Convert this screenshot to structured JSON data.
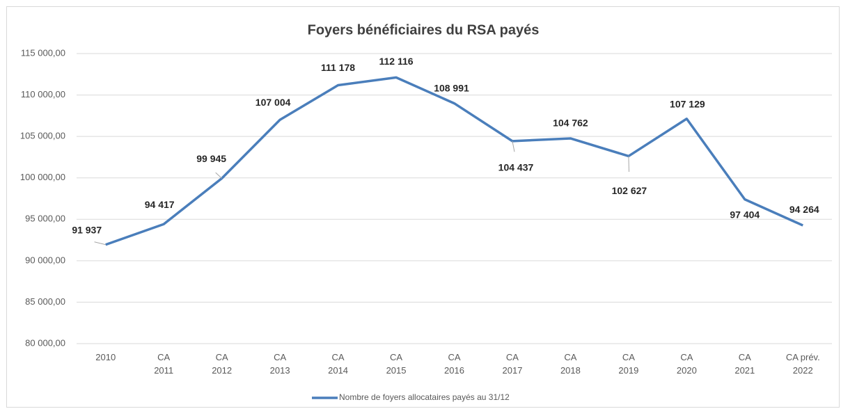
{
  "chart_data": {
    "type": "line",
    "title": "Foyers bénéficiaires du RSA payés",
    "categories": [
      [
        "2010"
      ],
      [
        "CA",
        "2011"
      ],
      [
        "CA",
        "2012"
      ],
      [
        "CA",
        "2013"
      ],
      [
        "CA",
        "2014"
      ],
      [
        "CA",
        "2015"
      ],
      [
        "CA",
        "2016"
      ],
      [
        "CA",
        "2017"
      ],
      [
        "CA",
        "2018"
      ],
      [
        "CA",
        "2019"
      ],
      [
        "CA",
        "2020"
      ],
      [
        "CA",
        "2021"
      ],
      [
        "CA prév.",
        "2022"
      ]
    ],
    "series": [
      {
        "name": "Nombre de foyers allocataires payés au 31/12",
        "color": "#4a7ebb",
        "values": [
          91937,
          94417,
          99945,
          107004,
          111178,
          112116,
          108991,
          104437,
          104762,
          102627,
          107129,
          97404,
          94264
        ],
        "value_labels": [
          "91 937",
          "94 417",
          "99 945",
          "107 004",
          "111 178",
          "112 116",
          "108 991",
          "104 437",
          "104 762",
          "102 627",
          "107 129",
          "97 404",
          "94 264"
        ]
      }
    ],
    "ylim": [
      80000,
      115000
    ],
    "yticks": [
      {
        "value": 80000,
        "label": "80 000,00"
      },
      {
        "value": 85000,
        "label": "85 000,00"
      },
      {
        "value": 90000,
        "label": "90 000,00"
      },
      {
        "value": 95000,
        "label": "95 000,00"
      },
      {
        "value": 100000,
        "label": "100 000,00"
      },
      {
        "value": 105000,
        "label": "105 000,00"
      },
      {
        "value": 110000,
        "label": "110 000,00"
      },
      {
        "value": 115000,
        "label": "115 000,00"
      }
    ],
    "grid": true,
    "legend": "bottom"
  }
}
